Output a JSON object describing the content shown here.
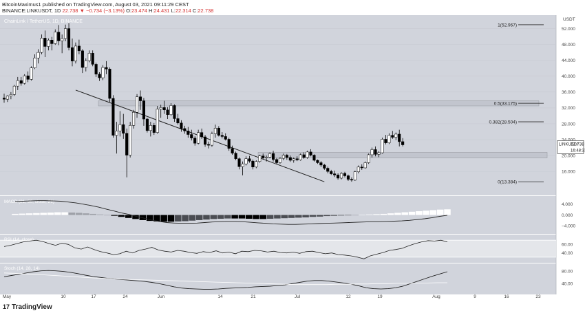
{
  "header": {
    "line1": "BitcoinMaximus1 published on TradingView.com, August 03, 2021 09:11:29 CEST",
    "symbol": "BINANCE:LINKUSDT, 1D",
    "last": "22.738",
    "change": "▼ −0.734 (−3.13%)",
    "o_label": "O:",
    "o": "23.474",
    "h_label": "H:",
    "h": "24.431",
    "l_label": "L:",
    "l": "22.314",
    "c_label": "C:",
    "c": "22.738"
  },
  "brand": {
    "logo": "17",
    "name": "TradingView"
  },
  "colors": {
    "background": "#d1d4dc",
    "candle_up": "#ffffff",
    "candle_down": "#000000",
    "sub_bg": "#dadde3",
    "axis_text": "#444444"
  },
  "chart_data": {
    "type": "candlestick",
    "title": "ChainLink / TetherUS, 1D, BINANCE",
    "currency": "USDT",
    "y_ticks": [
      "52.000",
      "48.000",
      "44.000",
      "40.000",
      "36.000",
      "32.000",
      "28.000",
      "24.000",
      "20.000",
      "16.000"
    ],
    "y_range": [
      11,
      54
    ],
    "x_ticks": [
      "May",
      "10",
      "17",
      "24",
      "Jun",
      "14",
      "21",
      "Jul",
      "12",
      "19",
      "Aug",
      "9",
      "16",
      "23"
    ],
    "last_price_label": "LINKUSDT",
    "last_price": "22.738",
    "countdown": "16:48:33",
    "fib_levels": [
      {
        "label": "1(52.967)",
        "value": 52.967
      },
      {
        "label": "0.5(33.175)",
        "value": 33.175
      },
      {
        "label": "0.382(28.504)",
        "value": 28.504
      },
      {
        "label": "0(13.384)",
        "value": 13.384
      }
    ],
    "zones": [
      {
        "name": "resistance",
        "from": 32.5,
        "to": 33.8
      },
      {
        "name": "support",
        "from": 19.4,
        "to": 20.8
      }
    ],
    "trendline": {
      "from": {
        "date": "2021-05-19",
        "value": 36.5
      },
      "to": {
        "date": "2021-07-31",
        "value": 13.4
      }
    },
    "candles": [
      [
        34.5,
        35.6,
        33.3,
        34.2
      ],
      [
        34.2,
        35.2,
        33.5,
        35.0
      ],
      [
        35.0,
        36.0,
        34.2,
        35.4
      ],
      [
        35.4,
        37.8,
        35.0,
        37.5
      ],
      [
        37.5,
        39.8,
        36.5,
        38.9
      ],
      [
        38.9,
        39.8,
        37.6,
        38.2
      ],
      [
        38.2,
        40.5,
        37.9,
        40.1
      ],
      [
        40.1,
        41.2,
        38.5,
        39.2
      ],
      [
        39.2,
        42.5,
        38.9,
        42.1
      ],
      [
        42.1,
        45.5,
        41.8,
        44.6
      ],
      [
        44.6,
        46.8,
        43.2,
        46.0
      ],
      [
        46.0,
        50.5,
        45.5,
        49.6
      ],
      [
        49.6,
        51.5,
        44.8,
        47.5
      ],
      [
        47.5,
        49.5,
        46.5,
        49.1
      ],
      [
        49.1,
        49.9,
        46.5,
        48.2
      ],
      [
        48.2,
        51.8,
        47.9,
        51.1
      ],
      [
        51.1,
        52.9,
        47.8,
        48.9
      ],
      [
        48.9,
        50.5,
        45.8,
        49.5
      ],
      [
        49.5,
        53.0,
        48.8,
        52.0
      ],
      [
        52.0,
        53.4,
        46.5,
        47.2
      ],
      [
        47.2,
        49.5,
        42.5,
        43.8
      ],
      [
        43.8,
        48.5,
        43.2,
        47.6
      ],
      [
        47.6,
        49.2,
        45.5,
        46.4
      ],
      [
        46.4,
        46.8,
        40.8,
        42.2
      ],
      [
        42.2,
        44.5,
        41.2,
        43.9
      ],
      [
        43.9,
        46.5,
        43.5,
        45.8
      ],
      [
        45.8,
        46.5,
        42.5,
        43.0
      ],
      [
        43.0,
        43.4,
        39.8,
        40.5
      ],
      [
        40.5,
        41.0,
        38.8,
        39.6
      ],
      [
        39.6,
        42.8,
        39.0,
        42.2
      ],
      [
        42.2,
        43.8,
        40.5,
        41.8
      ],
      [
        41.8,
        42.2,
        33.5,
        34.4
      ],
      [
        34.4,
        35.2,
        24.5,
        25.1
      ],
      [
        25.1,
        28.5,
        20.5,
        26.2
      ],
      [
        26.2,
        31.2,
        24.8,
        27.8
      ],
      [
        27.8,
        30.5,
        24.2,
        25.6
      ],
      [
        25.6,
        26.8,
        14.5,
        20.1
      ],
      [
        20.1,
        28.5,
        19.5,
        27.6
      ],
      [
        27.6,
        31.5,
        26.8,
        30.9
      ],
      [
        30.9,
        35.5,
        29.5,
        34.8
      ],
      [
        34.8,
        36.4,
        31.5,
        33.8
      ],
      [
        33.8,
        34.5,
        27.5,
        29.2
      ],
      [
        29.2,
        29.5,
        25.8,
        26.3
      ],
      [
        26.3,
        28.5,
        24.8,
        27.6
      ],
      [
        27.6,
        28.2,
        25.2,
        25.8
      ],
      [
        25.8,
        32.5,
        25.5,
        31.7
      ],
      [
        31.7,
        32.8,
        29.5,
        32.1
      ],
      [
        32.1,
        33.8,
        30.5,
        31.5
      ],
      [
        31.5,
        32.2,
        29.2,
        30.3
      ],
      [
        30.3,
        33.2,
        30.0,
        32.6
      ],
      [
        32.6,
        32.9,
        28.5,
        29.3
      ],
      [
        29.3,
        30.5,
        27.8,
        28.2
      ],
      [
        28.2,
        28.9,
        26.0,
        26.8
      ],
      [
        26.8,
        27.5,
        25.5,
        26.2
      ],
      [
        26.2,
        27.2,
        24.5,
        25.3
      ],
      [
        25.3,
        26.5,
        23.8,
        24.4
      ],
      [
        24.4,
        24.9,
        22.5,
        23.1
      ],
      [
        23.1,
        26.5,
        22.8,
        25.8
      ],
      [
        25.8,
        26.8,
        24.2,
        24.7
      ],
      [
        24.7,
        25.2,
        22.2,
        22.8
      ],
      [
        22.8,
        23.5,
        21.8,
        22.6
      ],
      [
        22.6,
        26.0,
        22.2,
        25.5
      ],
      [
        25.5,
        27.8,
        24.5,
        26.9
      ],
      [
        26.9,
        27.4,
        24.8,
        25.1
      ],
      [
        25.1,
        25.9,
        24.3,
        24.8
      ],
      [
        24.8,
        25.6,
        23.8,
        24.1
      ],
      [
        24.1,
        24.5,
        21.2,
        21.8
      ],
      [
        21.8,
        22.5,
        20.2,
        20.6
      ],
      [
        20.6,
        21.0,
        18.8,
        19.2
      ],
      [
        19.2,
        19.5,
        16.5,
        17.2
      ],
      [
        17.2,
        18.5,
        15.0,
        17.9
      ],
      [
        17.9,
        19.8,
        17.5,
        19.2
      ],
      [
        19.2,
        19.9,
        18.2,
        18.6
      ],
      [
        18.6,
        19.0,
        16.5,
        17.1
      ],
      [
        17.1,
        18.8,
        16.8,
        18.5
      ],
      [
        18.5,
        20.2,
        18.2,
        19.9
      ],
      [
        19.9,
        20.5,
        19.0,
        19.4
      ],
      [
        19.4,
        20.0,
        18.5,
        19.6
      ],
      [
        19.6,
        20.8,
        19.3,
        20.5
      ],
      [
        20.5,
        21.2,
        18.5,
        19.0
      ],
      [
        19.0,
        19.4,
        17.8,
        18.2
      ],
      [
        18.2,
        19.6,
        17.9,
        19.3
      ],
      [
        19.3,
        20.5,
        18.8,
        20.1
      ],
      [
        20.1,
        20.4,
        18.9,
        19.5
      ],
      [
        19.5,
        20.0,
        18.4,
        18.8
      ],
      [
        18.8,
        19.5,
        18.2,
        19.2
      ],
      [
        19.2,
        19.8,
        18.6,
        18.9
      ],
      [
        18.9,
        20.5,
        18.7,
        20.2
      ],
      [
        20.2,
        20.8,
        19.2,
        19.5
      ],
      [
        19.5,
        21.2,
        19.2,
        20.9
      ],
      [
        20.9,
        21.6,
        19.8,
        20.1
      ],
      [
        20.1,
        20.3,
        18.5,
        18.8
      ],
      [
        18.8,
        19.0,
        17.9,
        18.2
      ],
      [
        18.2,
        18.6,
        17.1,
        17.6
      ],
      [
        17.6,
        17.9,
        16.4,
        16.8
      ],
      [
        16.8,
        17.2,
        15.5,
        16.0
      ],
      [
        16.0,
        16.4,
        15.1,
        15.4
      ],
      [
        15.4,
        16.2,
        14.6,
        15.1
      ],
      [
        15.1,
        15.5,
        13.9,
        14.3
      ],
      [
        14.3,
        15.8,
        14.0,
        15.5
      ],
      [
        15.5,
        15.9,
        14.5,
        14.9
      ],
      [
        14.9,
        15.2,
        13.6,
        14.0
      ],
      [
        14.0,
        14.5,
        13.4,
        13.8
      ],
      [
        13.8,
        16.2,
        13.6,
        15.9
      ],
      [
        15.9,
        17.5,
        15.5,
        17.1
      ],
      [
        17.1,
        17.8,
        16.4,
        16.9
      ],
      [
        16.9,
        18.5,
        16.7,
        18.2
      ],
      [
        18.2,
        20.5,
        17.9,
        20.2
      ],
      [
        20.2,
        22.0,
        19.5,
        21.5
      ],
      [
        21.5,
        22.3,
        19.8,
        20.3
      ],
      [
        20.3,
        21.1,
        19.6,
        20.7
      ],
      [
        20.7,
        24.5,
        20.5,
        24.1
      ],
      [
        24.1,
        25.2,
        22.8,
        23.2
      ],
      [
        23.2,
        25.6,
        22.9,
        25.1
      ],
      [
        25.1,
        26.2,
        24.2,
        24.6
      ],
      [
        24.6,
        25.8,
        23.9,
        25.4
      ],
      [
        25.4,
        26.5,
        22.3,
        23.5
      ],
      [
        23.5,
        24.4,
        22.3,
        22.7
      ]
    ],
    "macd": {
      "label": "MACD (21, 50, close, 21)",
      "y_ticks": [
        "4.000",
        "0.000",
        "−4.000"
      ],
      "range": [
        -6,
        6
      ],
      "macd_line": [
        5.0,
        5.1,
        5.2,
        5.3,
        5.3,
        5.2,
        5.1,
        4.8,
        4.5,
        4.0,
        3.5,
        2.9,
        2.2,
        1.5,
        0.8,
        0.2,
        -0.5,
        -1.2,
        -1.9,
        -2.4,
        -2.8,
        -3.0,
        -3.1,
        -3.1,
        -3.0,
        -2.8,
        -2.6,
        -2.5,
        -2.4,
        -2.4,
        -2.5,
        -2.7,
        -2.9,
        -3.1,
        -3.3,
        -3.4,
        -3.5,
        -3.5,
        -3.4,
        -3.3,
        -3.2,
        -3.1,
        -3.0,
        -2.9,
        -2.8,
        -2.7,
        -2.6,
        -2.5,
        -2.5,
        -2.4,
        -2.3,
        -2.2,
        -2.0,
        -1.7,
        -1.4,
        -1.0,
        -0.5,
        -0.1
      ],
      "histogram": [
        0.4,
        0.5,
        0.6,
        0.7,
        0.8,
        0.9,
        1.0,
        1.0,
        0.9,
        0.8,
        0.6,
        0.4,
        0.2,
        0.0,
        -0.3,
        -0.7,
        -1.1,
        -1.5,
        -1.9,
        -2.2,
        -2.4,
        -2.5,
        -2.5,
        -2.4,
        -2.3,
        -2.1,
        -1.9,
        -1.7,
        -1.5,
        -1.4,
        -1.3,
        -1.3,
        -1.3,
        -1.4,
        -1.5,
        -1.5,
        -1.4,
        -1.3,
        -1.2,
        -1.1,
        -1.0,
        -0.9,
        -0.7,
        -0.6,
        -0.4,
        -0.3,
        -0.2,
        -0.1,
        0.0,
        0.1,
        0.2,
        0.3,
        0.4,
        0.6,
        0.8,
        1.0,
        1.2,
        1.4,
        1.6,
        1.8,
        2.0,
        2.1
      ]
    },
    "rsi": {
      "label": "RSI (14, close)",
      "y_ticks": [
        "60.00",
        "40.00"
      ],
      "range": [
        20,
        80
      ],
      "upper": 70,
      "lower": 30,
      "values": [
        55,
        58,
        62,
        66,
        68,
        70,
        67,
        62,
        58,
        63,
        60,
        52,
        49,
        54,
        48,
        43,
        40,
        36,
        38,
        44,
        40,
        46,
        49,
        53,
        47,
        44,
        42,
        46,
        44,
        41,
        39,
        43,
        41,
        45,
        40,
        42,
        38,
        44,
        43,
        46,
        45,
        42,
        44,
        41,
        40,
        42,
        39,
        43,
        44,
        41,
        38,
        40,
        36,
        35,
        33,
        30,
        26,
        33,
        37,
        41,
        46,
        48,
        51,
        57,
        62,
        66,
        69,
        68,
        70,
        66
      ]
    },
    "stoch": {
      "label": "Stoch (14, 28, 14)",
      "y_ticks": [
        "80.00",
        "40.00"
      ],
      "range": [
        10,
        100
      ],
      "k": [
        62,
        66,
        70,
        74,
        78,
        81,
        82,
        81,
        79,
        76,
        72,
        67,
        63,
        60,
        57,
        55,
        53,
        51,
        49,
        47,
        44,
        40,
        35,
        30,
        26,
        24,
        23,
        22,
        22,
        23,
        25,
        26,
        27,
        28,
        30,
        31,
        32,
        34,
        36,
        40,
        44,
        48,
        50,
        50,
        48,
        45,
        42,
        38,
        33,
        27,
        24,
        23,
        24,
        27,
        32,
        40,
        48,
        56,
        64,
        71,
        78
      ],
      "d": [
        74,
        73,
        71,
        70,
        68,
        66,
        64,
        62,
        60,
        58,
        57,
        55,
        54,
        53,
        52,
        51,
        50,
        49,
        48,
        47,
        46,
        45,
        44,
        43,
        42,
        41,
        40,
        39,
        38,
        37,
        37,
        37,
        37,
        38,
        38,
        39,
        39,
        40,
        40,
        41,
        41,
        42,
        42,
        43,
        43
      ]
    }
  }
}
